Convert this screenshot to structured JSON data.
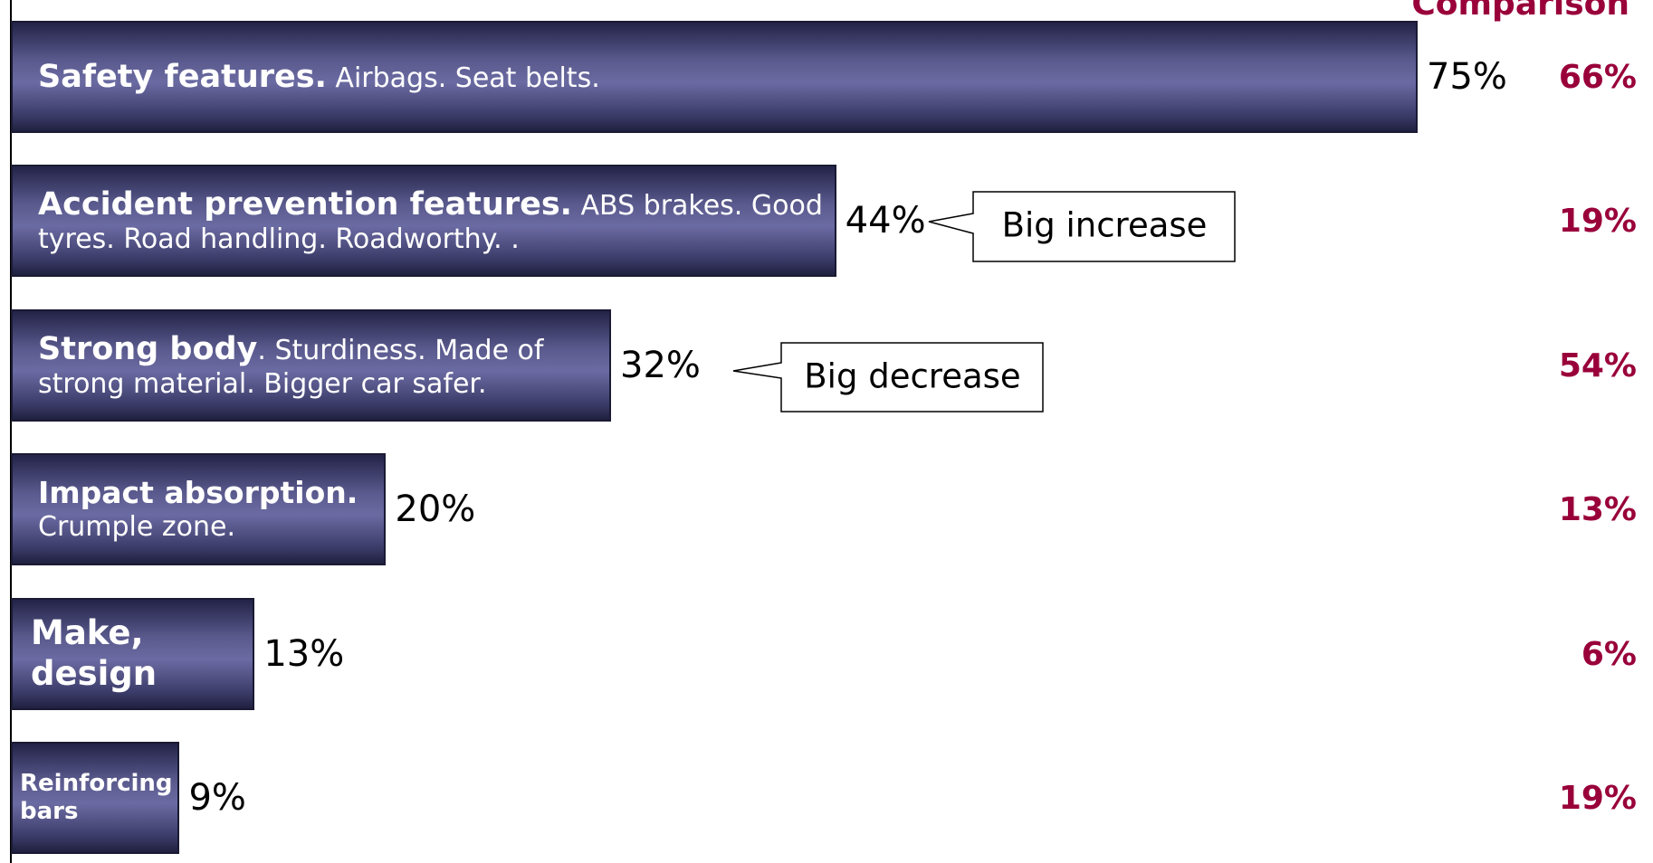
{
  "chart_data": {
    "type": "bar",
    "orientation": "horizontal",
    "comparison_title": "Comparison",
    "categories": [
      "Safety features.",
      "Accident prevention features.",
      "Strong body",
      "Impact absorption.",
      "Make, design",
      "Reinforcing bars"
    ],
    "category_details": [
      " Airbags. Seat belts.",
      " ABS brakes. Good tyres. Road handling. Roadworthy. .",
      ". Sturdiness. Made of strong material. Bigger car safer.",
      " Crumple zone.",
      null,
      null
    ],
    "values": [
      75,
      44,
      32,
      20,
      13,
      9
    ],
    "value_labels": [
      "75%",
      "44%",
      "32%",
      "20%",
      "13%",
      "9%"
    ],
    "comparison": {
      "values": [
        66,
        19,
        54,
        13,
        6,
        19
      ],
      "value_labels": [
        "66%",
        "19%",
        "54%",
        "13%",
        "6%",
        "19%"
      ],
      "color": "#99003a"
    },
    "annotations": [
      "Big increase",
      "Big decrease"
    ]
  }
}
